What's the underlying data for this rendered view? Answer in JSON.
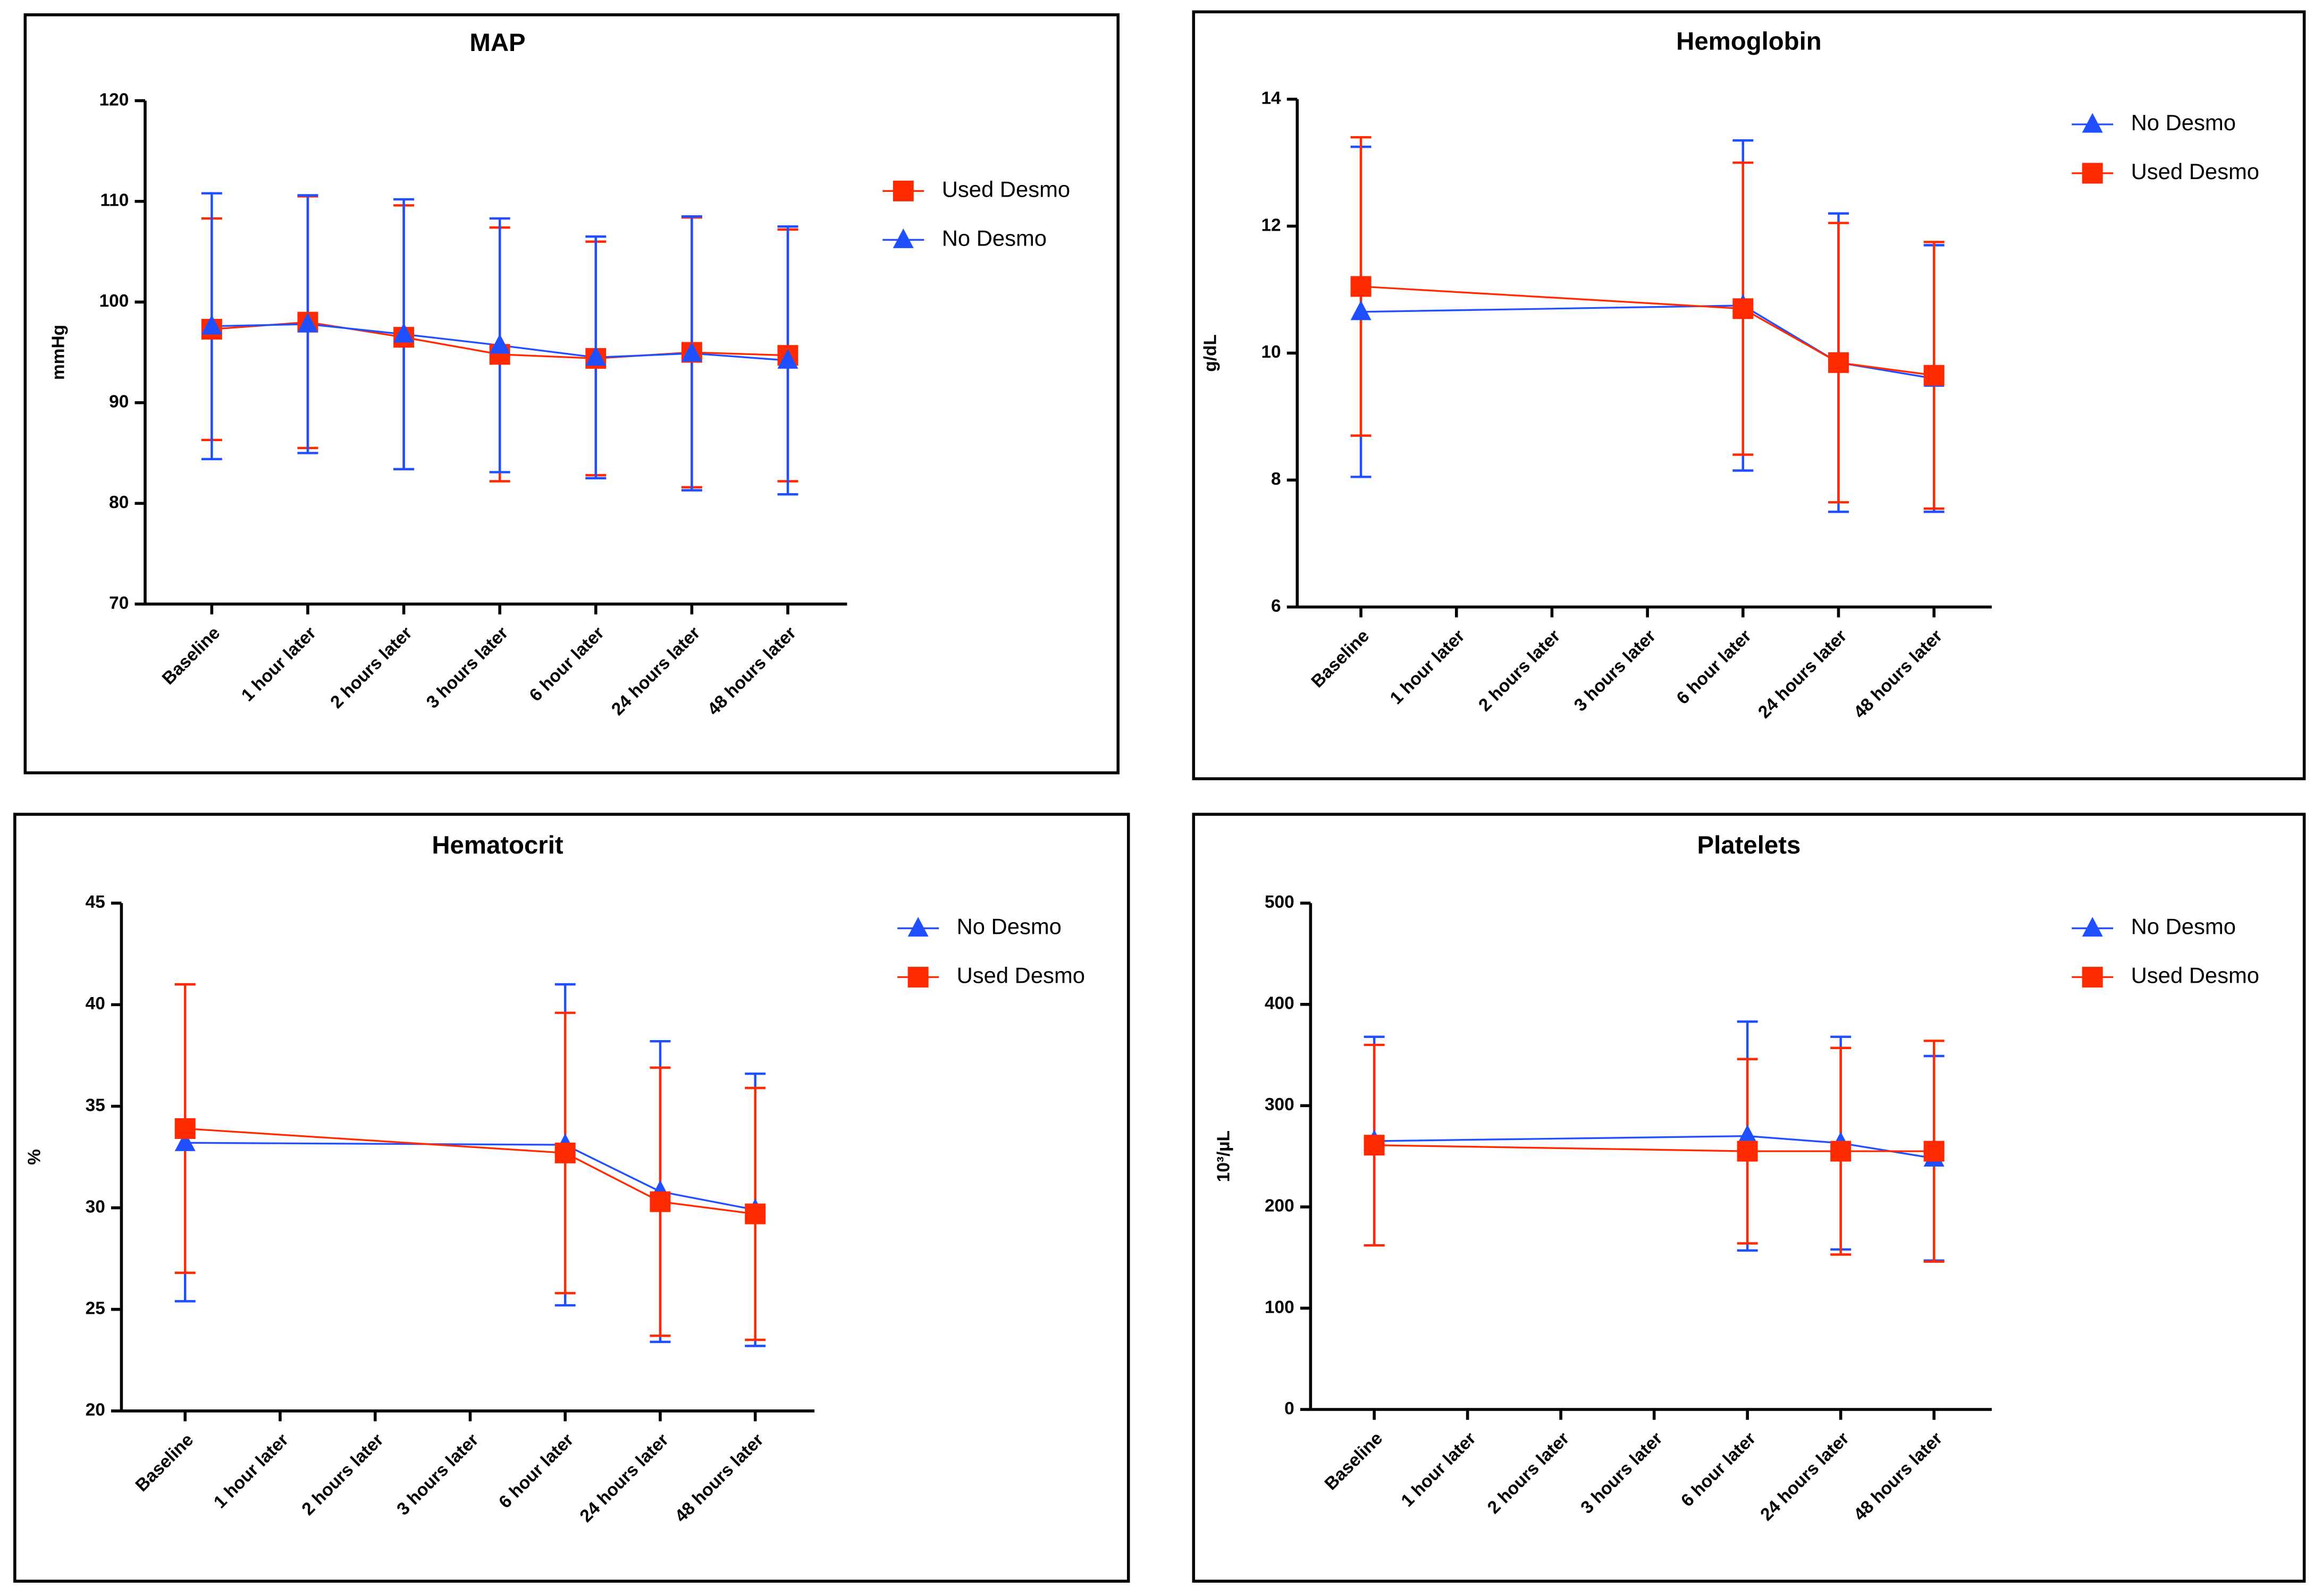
{
  "chart_data": [
    {
      "type": "line",
      "title": "MAP",
      "y_label": "mmHg",
      "categories": [
        "Baseline",
        "1 hour later",
        "2 hours later",
        "3 hours later",
        "6 hour later",
        "24 hours later",
        "48 hours later"
      ],
      "ylim": [
        70,
        120
      ],
      "yticks": [
        70,
        80,
        90,
        100,
        110,
        120
      ],
      "span_gaps": true,
      "series": [
        {
          "name": "Used Desmo",
          "color": "#ff2a00",
          "marker": "square",
          "values": [
            97.3,
            98,
            96.5,
            94.8,
            94.4,
            95,
            94.7
          ],
          "errors": [
            11,
            12.5,
            13.1,
            12.6,
            11.6,
            13.4,
            12.5
          ]
        },
        {
          "name": "No Desmo",
          "color": "#1f4fff",
          "marker": "triangle",
          "values": [
            97.6,
            97.8,
            96.8,
            95.7,
            94.5,
            94.9,
            94.2
          ],
          "errors": [
            13.2,
            12.8,
            13.4,
            12.6,
            12,
            13.6,
            13.3
          ]
        }
      ]
    },
    {
      "type": "line",
      "title": "Hemoglobin",
      "y_label": "g/dL",
      "categories": [
        "Baseline",
        "1 hour later",
        "2 hours later",
        "3 hours later",
        "6 hour later",
        "24 hours later",
        "48 hours later"
      ],
      "ylim": [
        6,
        14
      ],
      "yticks": [
        6,
        8,
        10,
        12,
        14
      ],
      "span_gaps": true,
      "series": [
        {
          "name": "No Desmo",
          "color": "#1f4fff",
          "marker": "triangle",
          "values": [
            10.65,
            null,
            null,
            null,
            10.75,
            9.85,
            9.6
          ],
          "errors": [
            2.6,
            null,
            null,
            null,
            2.6,
            2.35,
            2.1
          ]
        },
        {
          "name": "Used Desmo",
          "color": "#ff2a00",
          "marker": "square",
          "values": [
            11.05,
            null,
            null,
            null,
            10.7,
            9.85,
            9.65
          ],
          "errors": [
            2.35,
            null,
            null,
            null,
            2.3,
            2.2,
            2.1
          ]
        }
      ]
    },
    {
      "type": "line",
      "title": "Hematocrit",
      "y_label": "%",
      "categories": [
        "Baseline",
        "1 hour later",
        "2 hours later",
        "3 hours later",
        "6 hour later",
        "24 hours later",
        "48 hours later"
      ],
      "ylim": [
        20,
        45
      ],
      "yticks": [
        20,
        25,
        30,
        35,
        40,
        45
      ],
      "span_gaps": true,
      "series": [
        {
          "name": "No Desmo",
          "color": "#1f4fff",
          "marker": "triangle",
          "values": [
            33.2,
            null,
            null,
            null,
            33.1,
            30.8,
            29.9
          ],
          "errors": [
            7.8,
            null,
            null,
            null,
            7.9,
            7.4,
            6.7
          ]
        },
        {
          "name": "Used Desmo",
          "color": "#ff2a00",
          "marker": "square",
          "values": [
            33.9,
            null,
            null,
            null,
            32.7,
            30.3,
            29.7
          ],
          "errors": [
            7.1,
            null,
            null,
            null,
            6.9,
            6.6,
            6.2
          ]
        }
      ]
    },
    {
      "type": "line",
      "title": "Platelets",
      "y_label": "10³/µL",
      "categories": [
        "Baseline",
        "1 hour later",
        "2 hours later",
        "3 hours later",
        "6 hour later",
        "24 hours later",
        "48 hours later"
      ],
      "ylim": [
        0,
        500
      ],
      "yticks": [
        0,
        100,
        200,
        300,
        400,
        500
      ],
      "span_gaps": true,
      "series": [
        {
          "name": "No Desmo",
          "color": "#1f4fff",
          "marker": "triangle",
          "values": [
            265,
            null,
            null,
            null,
            270,
            263,
            248
          ],
          "errors": [
            103,
            null,
            null,
            null,
            113,
            105,
            101
          ]
        },
        {
          "name": "Used Desmo",
          "color": "#ff2a00",
          "marker": "square",
          "values": [
            261,
            null,
            null,
            null,
            255,
            255,
            255
          ],
          "errors": [
            99,
            null,
            null,
            null,
            91,
            102,
            109
          ]
        }
      ]
    }
  ]
}
